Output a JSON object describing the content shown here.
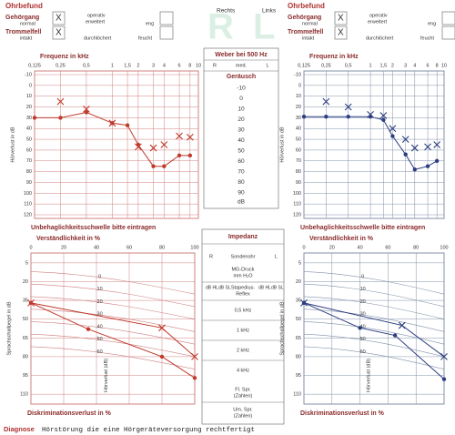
{
  "header": {
    "rechts": "Rechts",
    "links": "Links",
    "r": "R",
    "l": "L"
  },
  "ohrbefund": [
    {
      "title": "Ohrbefund",
      "gehoergang": "Gehörgang",
      "normal": "normal",
      "check1": "X",
      "operativ": "operativ",
      "erweitert": "erweitert",
      "eng": "eng",
      "trommelfell": "Trommelfell",
      "intakt": "intakt",
      "check2": "X",
      "durchloechert": "durchlöchert",
      "feucht": "feucht"
    },
    {
      "title": "Ohrbefund",
      "gehoergang": "Gehörgang",
      "normal": "normal",
      "check1": "X",
      "operativ": "operativ",
      "erweitert": "erweitert",
      "eng": "eng",
      "trommelfell": "Trommelfell",
      "intakt": "intakt",
      "check2": "X",
      "durchloechert": "durchlöchert",
      "feucht": "feucht"
    }
  ],
  "weber": {
    "title": "Weber bei 500 Hz",
    "cols": [
      "R",
      "med.",
      "L"
    ],
    "geraeusch": "Geräusch",
    "levels": [
      -10,
      0,
      10,
      20,
      30,
      40,
      50,
      60,
      70,
      80,
      90
    ],
    "unit": "dB"
  },
  "impedanz": {
    "title": "Impedanz",
    "r": "R",
    "sondenohr": "Sondenohr",
    "l": "L",
    "mg1": "MG-Druck",
    "mg2": "mm H₂O",
    "db_hl": "dB HL",
    "db_sl": "dB SL",
    "stapedius1": "Stapedius-",
    "stapedius2": "Reflex",
    "db_hl2": "dB HL",
    "db_sl2": "dB SL",
    "freqs": [
      "0,5 kHz",
      "1 kHz",
      "2 kHz",
      "4 kHz"
    ],
    "fl1": "Fl. Spr.",
    "fl2": "(Zahlen)",
    "um1": "Um. Spr.",
    "um2": "(Zahlen)"
  },
  "diagnose": {
    "label": "Diagnose",
    "text": "Hörstörung die eine Hörgeräteversorgung rechtfertigt"
  },
  "chart_data": [
    {
      "type": "line",
      "xlabel": "Frequenz in kHz",
      "ylabel": "Hörverlust in dB",
      "footer": "Unbehaglichkeitsschwelle bitte eintragen",
      "log": true,
      "inverted": true,
      "grid": true,
      "grid_color": "#d08080",
      "xlim": [
        0.125,
        10
      ],
      "xticks": [
        {
          "value": 0.125,
          "label": "0,125"
        },
        {
          "value": 0.25,
          "label": "0,25"
        },
        {
          "value": 0.5,
          "label": "0,5"
        },
        1,
        {
          "value": 1.5,
          "label": "1,5"
        },
        2,
        3,
        4,
        6,
        8,
        10
      ],
      "ylim": [
        -10,
        120
      ],
      "yticks": [
        -10,
        0,
        10,
        20,
        30,
        40,
        50,
        60,
        70,
        80,
        90,
        100,
        110,
        120
      ],
      "series": [
        {
          "color": "#c0392b",
          "marker": "o",
          "connect": true,
          "x": [
            0.125,
            0.25,
            0.5,
            1,
            1.5,
            2,
            3,
            4,
            6,
            8
          ],
          "values": [
            30,
            30,
            25,
            35,
            37,
            55,
            75,
            75,
            65,
            65
          ]
        },
        {
          "color": "#c0392b",
          "marker": "x",
          "connect": false,
          "x": [
            0.25,
            0.5,
            1,
            2,
            3,
            4,
            6,
            8
          ],
          "values": [
            15,
            22,
            35,
            57,
            58,
            55,
            47,
            48
          ]
        }
      ]
    },
    {
      "type": "line",
      "xlabel": "Frequenz in kHz",
      "ylabel": "Hörverlust in dB",
      "footer": "Unbehaglichkeitsschwelle bitte eintragen",
      "log": true,
      "inverted": true,
      "grid": true,
      "grid_color": "#8090a8",
      "xlim": [
        0.125,
        10
      ],
      "xticks": [
        {
          "value": 0.125,
          "label": "0,125"
        },
        {
          "value": 0.25,
          "label": "0,25"
        },
        {
          "value": 0.5,
          "label": "0,5"
        },
        1,
        {
          "value": 1.5,
          "label": "1,5"
        },
        2,
        3,
        4,
        6,
        8,
        10
      ],
      "ylim": [
        -10,
        120
      ],
      "yticks": [
        -10,
        0,
        10,
        20,
        30,
        40,
        50,
        60,
        70,
        80,
        90,
        100,
        110,
        120
      ],
      "series": [
        {
          "color": "#2c3e80",
          "marker": "o",
          "connect": true,
          "x": [
            0.125,
            0.25,
            0.5,
            1,
            1.5,
            2,
            3,
            4,
            6,
            8
          ],
          "values": [
            29,
            29,
            29,
            29,
            32,
            47,
            64,
            78,
            75,
            70
          ]
        },
        {
          "color": "#2c3e80",
          "marker": "x",
          "connect": false,
          "x": [
            0.25,
            0.5,
            1,
            1.5,
            2,
            3,
            4,
            6,
            8
          ],
          "values": [
            15,
            20,
            27,
            28,
            40,
            50,
            58,
            57,
            55
          ]
        }
      ]
    },
    {
      "type": "line",
      "xlabel": "Verständlichkeit in %",
      "ylabel": "Sprachschallpegel in dB",
      "footer": "Diskriminationsverlust in %",
      "inverted": true,
      "grid": true,
      "grid_color": "#d08080",
      "xlim": [
        0,
        100
      ],
      "xticks": [
        0,
        20,
        40,
        60,
        80,
        100
      ],
      "ylim": [
        0,
        115
      ],
      "yticks": [
        5,
        20,
        35,
        50,
        65,
        80,
        95,
        110
      ],
      "curve_label": "Hörverlust (dB)",
      "curve_levels": [
        0,
        10,
        20,
        30,
        40,
        50,
        60
      ],
      "series": [
        {
          "color": "#c0392b",
          "marker": "o",
          "connect": true,
          "x": [
            0,
            35,
            80,
            100
          ],
          "values": [
            37,
            58,
            80,
            97
          ]
        },
        {
          "color": "#c0392b",
          "marker": "x",
          "connect": true,
          "x": [
            0,
            80,
            100
          ],
          "values": [
            37,
            57,
            80
          ]
        }
      ]
    },
    {
      "type": "line",
      "xlabel": "Verständlichkeit in %",
      "ylabel": "Sprachschallpegel in dB",
      "footer": "Diskriminationsverlust in %",
      "inverted": true,
      "grid": true,
      "grid_color": "#8090a8",
      "xlim": [
        0,
        100
      ],
      "xticks": [
        0,
        20,
        40,
        60,
        80,
        100
      ],
      "ylim": [
        0,
        115
      ],
      "yticks": [
        5,
        20,
        35,
        50,
        65,
        80,
        95,
        110
      ],
      "curve_label": "Hörverlust (dB)",
      "curve_levels": [
        0,
        10,
        20,
        30,
        40,
        50,
        60
      ],
      "series": [
        {
          "color": "#2c3e80",
          "marker": "o",
          "connect": true,
          "x": [
            0,
            40,
            65,
            100
          ],
          "values": [
            37,
            57,
            63,
            98
          ]
        },
        {
          "color": "#2c3e80",
          "marker": "x",
          "connect": true,
          "x": [
            0,
            70,
            100
          ],
          "values": [
            37,
            55,
            80
          ]
        }
      ]
    }
  ]
}
